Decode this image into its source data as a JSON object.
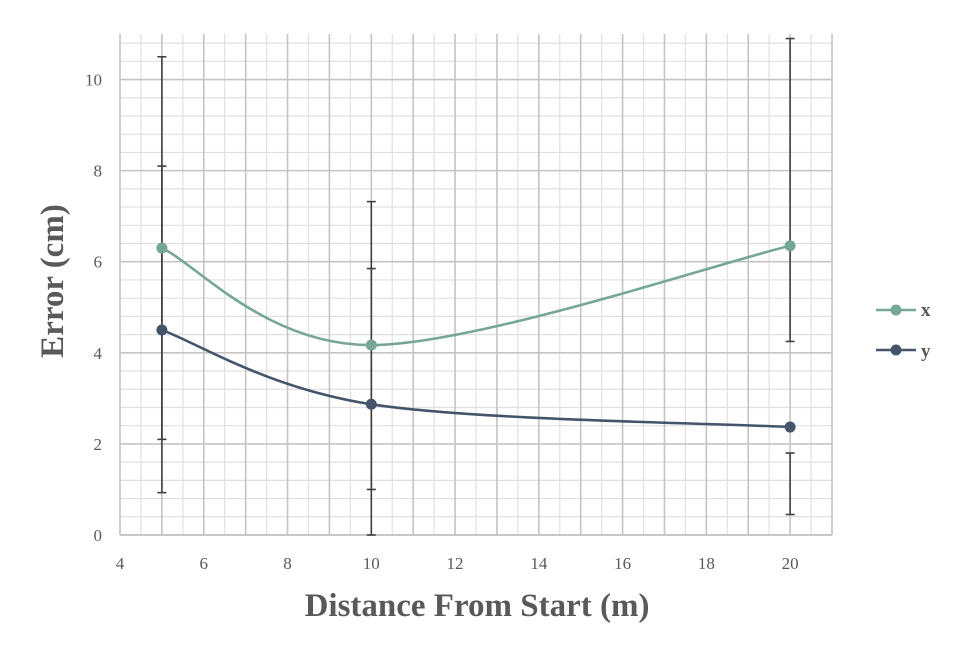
{
  "chart_data": {
    "type": "scatter",
    "xlabel": "Distance From Start (m)",
    "ylabel": "Error (cm)",
    "xlim": [
      4,
      21
    ],
    "ylim": [
      0,
      11
    ],
    "x_ticks": [
      4,
      6,
      8,
      10,
      12,
      14,
      16,
      18,
      20
    ],
    "y_ticks": [
      0,
      2,
      4,
      6,
      8,
      10
    ],
    "grid": true,
    "legend_position": "right",
    "smooth_lines": true,
    "series": [
      {
        "name": "x",
        "color": "#76A695",
        "x": [
          5,
          10,
          20
        ],
        "y": [
          6.3,
          4.17,
          6.35
        ],
        "error_low": [
          2.1,
          1.0,
          4.25
        ],
        "error_high": [
          10.5,
          7.32,
          10.9
        ]
      },
      {
        "name": "y",
        "color": "#44546A",
        "x": [
          5,
          10,
          20
        ],
        "y": [
          4.5,
          2.87,
          2.37
        ],
        "error_low": [
          0.93,
          0.0,
          0.45
        ],
        "error_high": [
          8.1,
          5.85,
          1.8
        ]
      }
    ]
  }
}
